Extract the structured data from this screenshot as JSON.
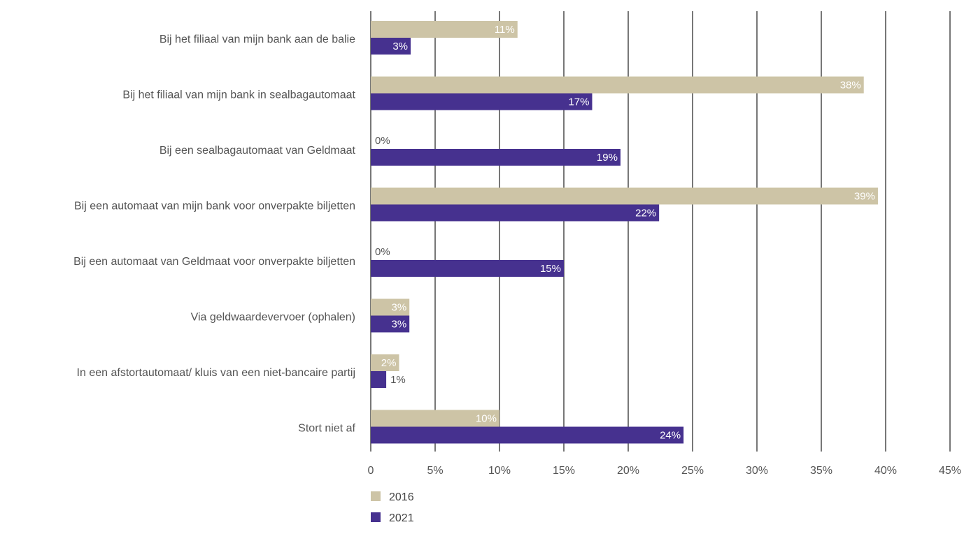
{
  "chart_data": {
    "type": "bar",
    "orientation": "horizontal",
    "categories": [
      "Bij het filiaal van mijn bank aan de balie",
      "Bij het filiaal van mijn bank in sealbagautomaat",
      "Bij een sealbagautomaat van Geldmaat",
      "Bij een automaat van mijn bank voor onverpakte biljetten",
      "Bij een automaat van Geldmaat voor onverpakte biljetten",
      "Via geldwaardevervoer (ophalen)",
      "In een afstortautomaat/ kluis van een niet-bancaire partij",
      "Stort niet af"
    ],
    "series": [
      {
        "name": "2016",
        "color": "#cdc4a6",
        "values": [
          11.4,
          38.3,
          0,
          39.4,
          0,
          3.0,
          2.2,
          10.0
        ],
        "labels": [
          "11%",
          "38%",
          "0%",
          "39%",
          "0%",
          "3%",
          "2%",
          "10%"
        ]
      },
      {
        "name": "2021",
        "color": "#46318f",
        "values": [
          3.1,
          17.2,
          19.4,
          22.4,
          15.0,
          3.0,
          1.2,
          24.3
        ],
        "labels": [
          "3%",
          "17%",
          "19%",
          "22%",
          "15%",
          "3%",
          "1%",
          "24%"
        ]
      }
    ],
    "xlim": [
      0,
      45
    ],
    "xticks": [
      0,
      5,
      10,
      15,
      20,
      25,
      30,
      35,
      40,
      45
    ],
    "xtick_labels": [
      "0",
      "5%",
      "10%",
      "15%",
      "20%",
      "25%",
      "30%",
      "35%",
      "40%",
      "45%"
    ],
    "grid": "vertical",
    "gridline_color": "#555555",
    "legend_position": "bottom-left"
  }
}
